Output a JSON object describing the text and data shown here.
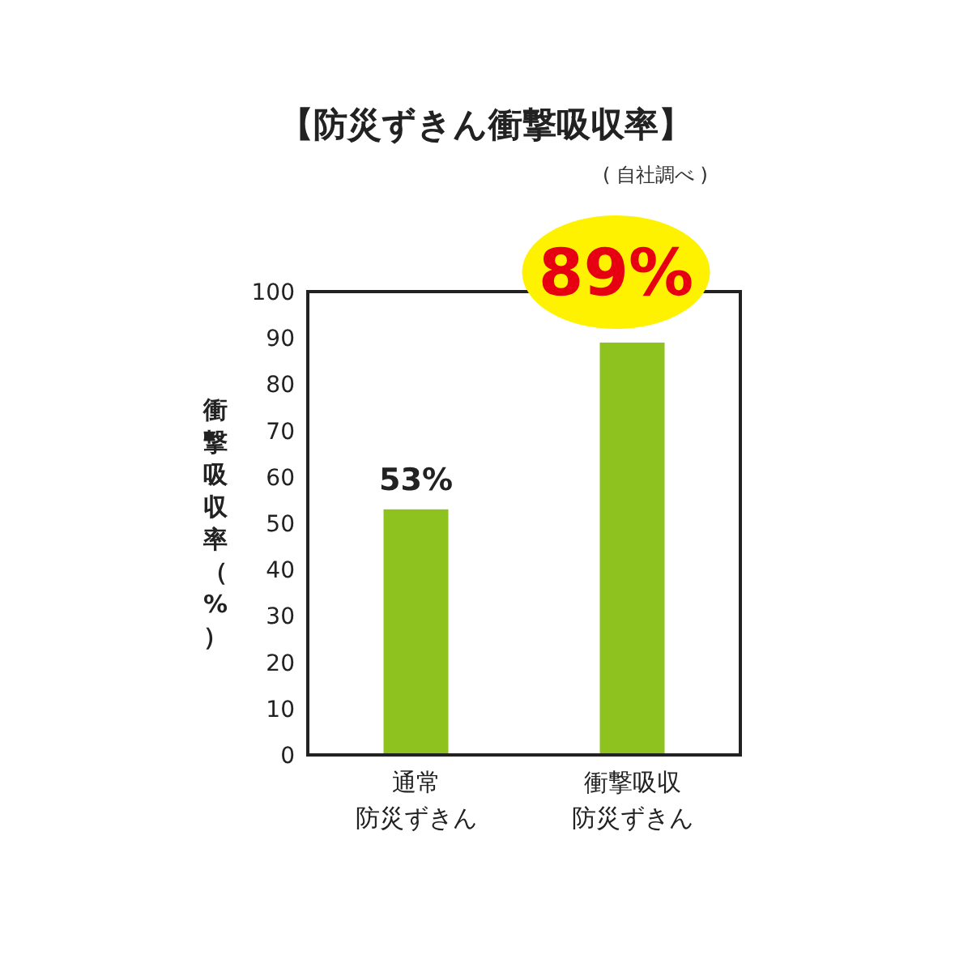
{
  "chart_data": {
    "type": "bar",
    "title": "【防災ずきん衝撃吸収率】",
    "annotations": [
      "( 自社調べ )"
    ],
    "ylabel": "衝撃吸収率（%）",
    "categories": [
      "通常防災ずきん",
      "衝撃吸収防災ずきん"
    ],
    "values": [
      53,
      89
    ],
    "color": "#8dc21f",
    "value_labels": [
      "53%",
      "89%"
    ],
    "ylim": [
      0,
      100
    ],
    "yticks": [
      0,
      10,
      20,
      30,
      40,
      50,
      60,
      70,
      80,
      90,
      100
    ],
    "grid": false
  }
}
